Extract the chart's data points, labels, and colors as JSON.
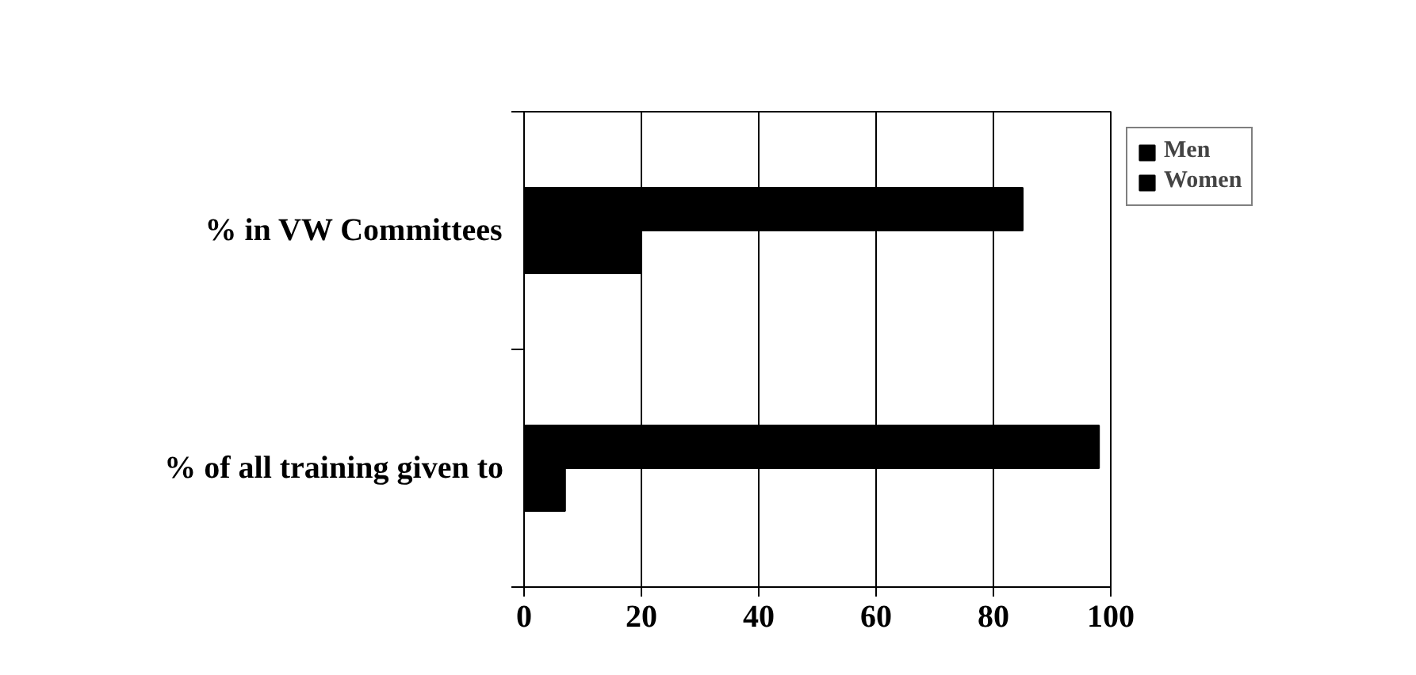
{
  "chart_data": {
    "type": "bar",
    "orientation": "horizontal",
    "categories": [
      "% in VW Committees",
      "% of all training given to"
    ],
    "series": [
      {
        "name": "Men",
        "color": "#000000",
        "values": [
          85,
          98
        ]
      },
      {
        "name": "Women",
        "color": "#000000",
        "values": [
          20,
          7
        ]
      }
    ],
    "xlim": [
      0,
      100
    ],
    "xticks": [
      0,
      20,
      40,
      60,
      80,
      100
    ],
    "grid": "x",
    "legend": "top right"
  }
}
